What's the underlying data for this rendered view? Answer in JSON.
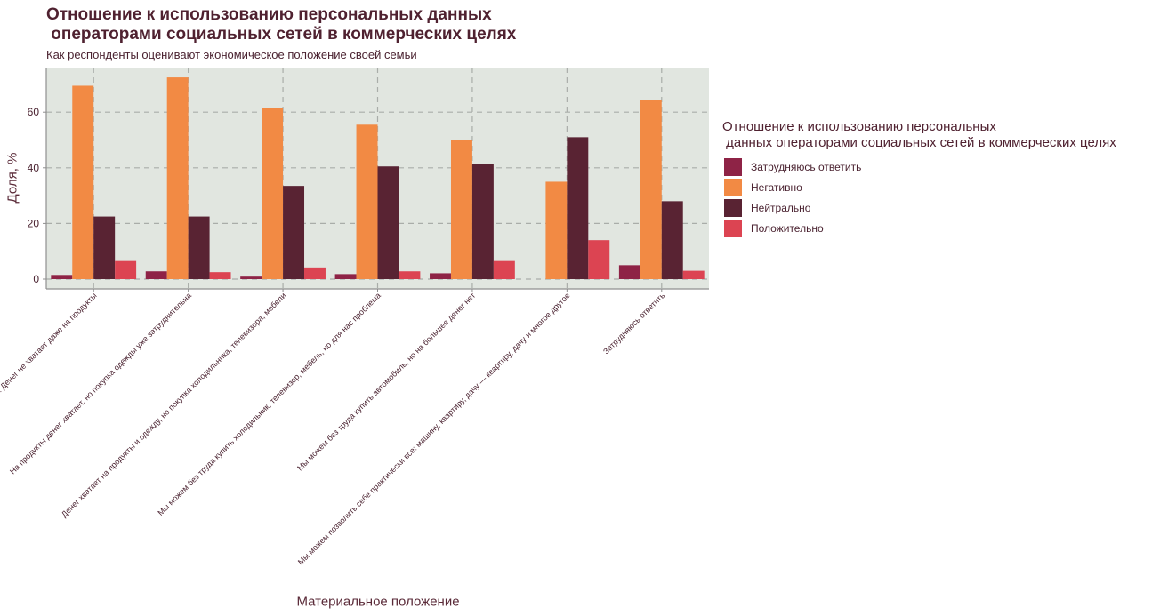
{
  "chart_data": {
    "type": "bar",
    "title": "Отношение к использованию персональных данных\n операторами социальных сетей в коммерческих целях",
    "subtitle": "Как респонденты оценивают экономическое положение своей семьи",
    "xlabel": "Материальное положение",
    "ylabel": "Доля, %",
    "ylim": [
      0,
      74
    ],
    "yticks": [
      0,
      20,
      40,
      60
    ],
    "grid": true,
    "legend_title": "Отношение к использованию персональных\n данных операторами социальных сетей в коммерческих целях",
    "legend_position": "right",
    "categories": [
      "Мы едва сводим концы с концами. Денег не хватает даже на продукты",
      "На продукты денег хватает, но покупка одежды уже затруднительна",
      "Денег хватает на продукты и одежду, но покупка холодильника, телевизора, мебели",
      "Мы можем без труда купить холодильник, телевизор, мебель, но для нас проблема",
      "Мы можем без труда купить автомобиль, но на большее денег нет",
      "Мы можем позволить себе практически все: машину, квартиру, дачу — квартиру, дачу и многое другое",
      "Затрудняюсь ответить"
    ],
    "series": [
      {
        "name": "Затрудняюсь ответить",
        "color": "#8e2346",
        "values": [
          1.5,
          2.8,
          0.9,
          1.8,
          2.1,
          0,
          5.0
        ]
      },
      {
        "name": "Негативно",
        "color": "#f28a44",
        "values": [
          69.5,
          72.5,
          61.5,
          55.5,
          50.0,
          35.0,
          64.5
        ]
      },
      {
        "name": "Нейтрально",
        "color": "#592333",
        "values": [
          22.5,
          22.5,
          33.5,
          40.5,
          41.5,
          51.0,
          28.0
        ]
      },
      {
        "name": "Положительно",
        "color": "#dc4452",
        "values": [
          6.5,
          2.5,
          4.2,
          2.8,
          6.5,
          14.0,
          3.0
        ]
      }
    ]
  }
}
